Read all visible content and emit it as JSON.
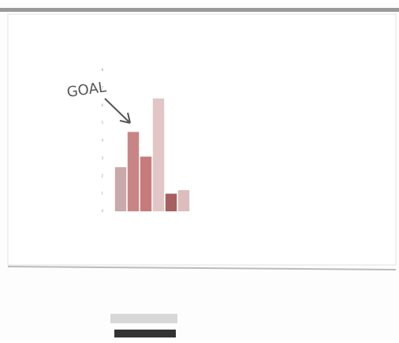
{
  "chart_data": {
    "type": "bar",
    "annotation": "GOAL",
    "categories": [
      null,
      null,
      null,
      null,
      null,
      null
    ],
    "values": [
      2.5,
      4.5,
      3.1,
      6.4,
      1.0,
      1.2
    ],
    "colors": [
      "#c9a9a9",
      "#c98585",
      "#c77a7a",
      "#e2c6c6",
      "#a66060",
      "#dcbcbc"
    ],
    "ylim": [
      0,
      8
    ],
    "yticks": [
      0,
      1,
      2,
      3,
      4,
      5,
      6,
      7,
      8
    ],
    "grid": false
  }
}
